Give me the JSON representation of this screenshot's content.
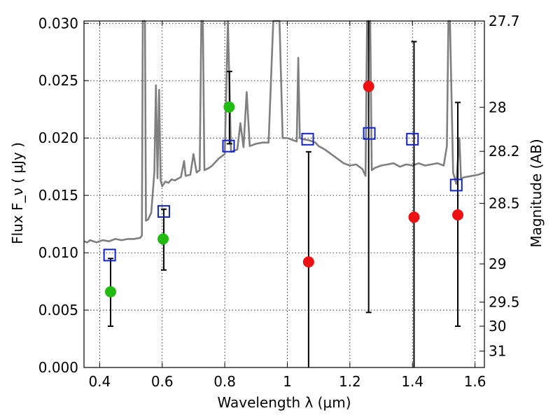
{
  "chart_data": {
    "type": "scatter",
    "xlabel": "Wavelength  λ (μm)",
    "ylabel": "Flux  F_ν  ( μJy )",
    "y2label": "Magnitude (AB)",
    "xlim": [
      0.35,
      1.63
    ],
    "ylim": [
      0.0,
      0.0302
    ],
    "grid": true,
    "x_ticks": [
      0.4,
      0.6,
      0.8,
      1.0,
      1.2,
      1.4,
      1.6
    ],
    "x_tick_labels": [
      "0.4",
      "0.6",
      "0.8",
      "1",
      "1.2",
      "1.4",
      "1.6"
    ],
    "y_ticks": [
      0.0,
      0.005,
      0.01,
      0.015,
      0.02,
      0.025,
      0.03
    ],
    "y_tick_labels": [
      "0.000",
      "0.005",
      "0.010",
      "0.015",
      "0.020",
      "0.025",
      "0.030"
    ],
    "mag_ticks": [
      {
        "label": "27.7",
        "flux": 0.0302
      },
      {
        "label": "28",
        "flux": 0.02268
      },
      {
        "label": "28.2",
        "flux": 0.01884
      },
      {
        "label": "28.5",
        "flux": 0.01431
      },
      {
        "label": "29",
        "flux": 0.00903
      },
      {
        "label": "29.5",
        "flux": 0.0057
      },
      {
        "label": "30",
        "flux": 0.0036
      },
      {
        "label": "31",
        "flux": 0.00143
      }
    ],
    "series": [
      {
        "marker": "circle",
        "color": "#22bb11",
        "points": [
          {
            "x": 0.435,
            "y": 0.0066
          },
          {
            "x": 0.603,
            "y": 0.0112
          },
          {
            "x": 0.814,
            "y": 0.0227
          }
        ]
      },
      {
        "marker": "circle",
        "color": "#ee1111",
        "points": [
          {
            "x": 1.068,
            "y": 0.0092
          },
          {
            "x": 1.26,
            "y": 0.0245
          },
          {
            "x": 1.405,
            "y": 0.0131
          },
          {
            "x": 1.545,
            "y": 0.0133
          }
        ]
      },
      {
        "marker": "open-square",
        "color": "#1122cc",
        "points": [
          {
            "x": 0.432,
            "y": 0.0098
          },
          {
            "x": 0.605,
            "y": 0.0136
          },
          {
            "x": 0.812,
            "y": 0.0193
          },
          {
            "x": 1.065,
            "y": 0.0199
          },
          {
            "x": 1.262,
            "y": 0.0204
          },
          {
            "x": 1.4,
            "y": 0.0199
          },
          {
            "x": 1.54,
            "y": 0.0159
          }
        ]
      }
    ],
    "error_bars": [
      {
        "x": 0.435,
        "low": 0.0036,
        "high": 0.0095
      },
      {
        "x": 0.605,
        "low": 0.0085,
        "high": 0.0138
      },
      {
        "x": 0.815,
        "low": 0.0195,
        "high": 0.0258
      },
      {
        "x": 1.068,
        "low": 0.0,
        "high": 0.0188
      },
      {
        "x": 1.26,
        "low": 0.0048,
        "high": 0.0302
      },
      {
        "x": 1.405,
        "low": 0.0,
        "high": 0.0284
      },
      {
        "x": 1.545,
        "low": 0.0036,
        "high": 0.0231
      }
    ],
    "model_spectrum": {
      "color": "#7f7f7f",
      "points": [
        [
          0.35,
          0.011
        ],
        [
          0.36,
          0.0109
        ],
        [
          0.37,
          0.0111
        ],
        [
          0.39,
          0.0109
        ],
        [
          0.41,
          0.0111
        ],
        [
          0.43,
          0.011
        ],
        [
          0.45,
          0.0112
        ],
        [
          0.47,
          0.0111
        ],
        [
          0.49,
          0.0112
        ],
        [
          0.51,
          0.0112
        ],
        [
          0.53,
          0.0113
        ],
        [
          0.535,
          0.0115
        ],
        [
          0.538,
          0.0302
        ],
        [
          0.545,
          0.0302
        ],
        [
          0.548,
          0.0128
        ],
        [
          0.555,
          0.0129
        ],
        [
          0.565,
          0.0135
        ],
        [
          0.575,
          0.017
        ],
        [
          0.58,
          0.0246
        ],
        [
          0.585,
          0.0165
        ],
        [
          0.59,
          0.0242
        ],
        [
          0.595,
          0.0163
        ],
        [
          0.6,
          0.0158
        ],
        [
          0.61,
          0.0162
        ],
        [
          0.62,
          0.0161
        ],
        [
          0.63,
          0.0164
        ],
        [
          0.64,
          0.0163
        ],
        [
          0.66,
          0.0166
        ],
        [
          0.67,
          0.018
        ],
        [
          0.675,
          0.0167
        ],
        [
          0.69,
          0.0168
        ],
        [
          0.7,
          0.0186
        ],
        [
          0.71,
          0.017
        ],
        [
          0.72,
          0.0172
        ],
        [
          0.725,
          0.0302
        ],
        [
          0.73,
          0.0302
        ],
        [
          0.735,
          0.0172
        ],
        [
          0.75,
          0.0174
        ],
        [
          0.76,
          0.0176
        ],
        [
          0.78,
          0.0182
        ],
        [
          0.8,
          0.0186
        ],
        [
          0.81,
          0.0302
        ],
        [
          0.82,
          0.0188
        ],
        [
          0.84,
          0.019
        ],
        [
          0.85,
          0.0213
        ],
        [
          0.86,
          0.0192
        ],
        [
          0.87,
          0.024
        ],
        [
          0.88,
          0.0193
        ],
        [
          0.9,
          0.0195
        ],
        [
          0.92,
          0.0196
        ],
        [
          0.94,
          0.0196
        ],
        [
          0.955,
          0.0302
        ],
        [
          0.965,
          0.0302
        ],
        [
          0.975,
          0.0302
        ],
        [
          0.985,
          0.02
        ],
        [
          1.0,
          0.02
        ],
        [
          1.02,
          0.0198
        ],
        [
          1.03,
          0.0197
        ],
        [
          1.035,
          0.027
        ],
        [
          1.04,
          0.02
        ],
        [
          1.05,
          0.0199
        ],
        [
          1.07,
          0.0198
        ],
        [
          1.09,
          0.0196
        ],
        [
          1.1,
          0.0193
        ],
        [
          1.12,
          0.019
        ],
        [
          1.14,
          0.0186
        ],
        [
          1.16,
          0.0182
        ],
        [
          1.18,
          0.0178
        ],
        [
          1.2,
          0.0176
        ],
        [
          1.22,
          0.0177
        ],
        [
          1.24,
          0.0173
        ],
        [
          1.25,
          0.0167
        ],
        [
          1.255,
          0.0302
        ],
        [
          1.265,
          0.0302
        ],
        [
          1.27,
          0.0172
        ],
        [
          1.28,
          0.0174
        ],
        [
          1.3,
          0.0176
        ],
        [
          1.32,
          0.0177
        ],
        [
          1.34,
          0.0178
        ],
        [
          1.36,
          0.0175
        ],
        [
          1.38,
          0.0177
        ],
        [
          1.4,
          0.0176
        ],
        [
          1.42,
          0.0178
        ],
        [
          1.44,
          0.0176
        ],
        [
          1.46,
          0.0177
        ],
        [
          1.48,
          0.0178
        ],
        [
          1.5,
          0.0176
        ],
        [
          1.51,
          0.0193
        ],
        [
          1.515,
          0.0302
        ],
        [
          1.52,
          0.0302
        ],
        [
          1.53,
          0.017
        ],
        [
          1.54,
          0.016
        ],
        [
          1.55,
          0.02
        ],
        [
          1.555,
          0.0165
        ],
        [
          1.57,
          0.0166
        ],
        [
          1.59,
          0.0167
        ],
        [
          1.61,
          0.0168
        ],
        [
          1.63,
          0.017
        ]
      ]
    }
  }
}
